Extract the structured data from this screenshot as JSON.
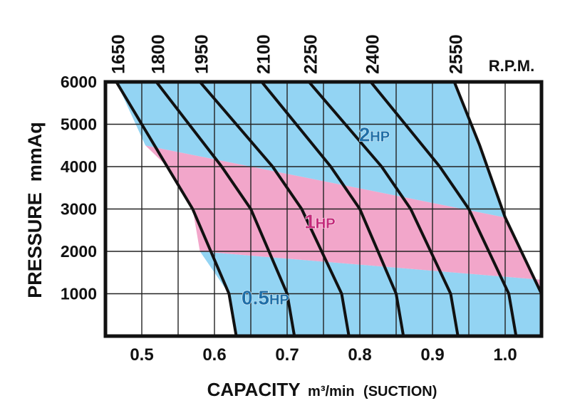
{
  "chart_data": {
    "type": "line",
    "title": "",
    "xlabel": "CAPACITY",
    "xlabel_units": "m³/min",
    "xlabel_suffix": "(SUCTION)",
    "ylabel": "PRESSURE  mmAq",
    "xlim": [
      0.45,
      1.05
    ],
    "ylim": [
      0,
      6000
    ],
    "grid": true,
    "x_ticks": [
      0.5,
      0.6,
      0.7,
      0.8,
      0.9,
      1.0
    ],
    "x_tick_labels": [
      "0.5",
      "0.6",
      "0.7",
      "0.8",
      "0.9",
      "1.0"
    ],
    "y_ticks": [
      1000,
      2000,
      3000,
      4000,
      5000,
      6000
    ],
    "y_tick_labels": [
      "1000",
      "2000",
      "3000",
      "4000",
      "5000",
      "6000"
    ],
    "rpm_label": "R.P.M.",
    "series": [
      {
        "name": "1650",
        "points": [
          [
            0.465,
            6000
          ],
          [
            0.535,
            4000
          ],
          [
            0.57,
            3000
          ],
          [
            0.62,
            1000
          ],
          [
            0.63,
            0
          ]
        ]
      },
      {
        "name": "1800",
        "points": [
          [
            0.52,
            6000
          ],
          [
            0.61,
            4000
          ],
          [
            0.65,
            3000
          ],
          [
            0.7,
            1000
          ],
          [
            0.71,
            0
          ]
        ]
      },
      {
        "name": "1950",
        "points": [
          [
            0.58,
            6000
          ],
          [
            0.68,
            4000
          ],
          [
            0.72,
            3000
          ],
          [
            0.775,
            1000
          ],
          [
            0.785,
            0
          ]
        ]
      },
      {
        "name": "2100",
        "points": [
          [
            0.665,
            6000
          ],
          [
            0.76,
            4000
          ],
          [
            0.8,
            3000
          ],
          [
            0.85,
            1000
          ],
          [
            0.86,
            0
          ]
        ]
      },
      {
        "name": "2250",
        "points": [
          [
            0.73,
            6000
          ],
          [
            0.83,
            4000
          ],
          [
            0.87,
            3000
          ],
          [
            0.925,
            1000
          ],
          [
            0.935,
            0
          ]
        ]
      },
      {
        "name": "2400",
        "points": [
          [
            0.815,
            6000
          ],
          [
            0.91,
            4000
          ],
          [
            0.95,
            3000
          ],
          [
            1.005,
            1000
          ],
          [
            1.015,
            0
          ]
        ]
      },
      {
        "name": "2550",
        "points": [
          [
            0.93,
            6000
          ],
          [
            0.965,
            4500
          ],
          [
            1.0,
            2800
          ],
          [
            1.05,
            1000
          ]
        ]
      }
    ],
    "regions": [
      {
        "name": "0.5HP",
        "label": "0.5",
        "label_unit": "HP",
        "color": "#93d4f3",
        "label_color": "#1f6fa8",
        "label_pos": [
          0.67,
          750
        ]
      },
      {
        "name": "1HP",
        "label": "1",
        "label_unit": "HP",
        "color": "#f2a6ca",
        "label_color": "#c42a7a",
        "label_pos": [
          0.745,
          2550
        ]
      },
      {
        "name": "2HP",
        "label": "2",
        "label_unit": "HP",
        "color": "#93d4f3",
        "label_color": "#1f6fa8",
        "label_pos": [
          0.82,
          4600
        ]
      }
    ],
    "region_boundaries": {
      "lower_1hp": [
        [
          0.58,
          2000
        ],
        [
          1.05,
          1330
        ]
      ],
      "upper_1hp": [
        [
          0.505,
          4500
        ],
        [
          1.0,
          2800
        ]
      ]
    }
  }
}
